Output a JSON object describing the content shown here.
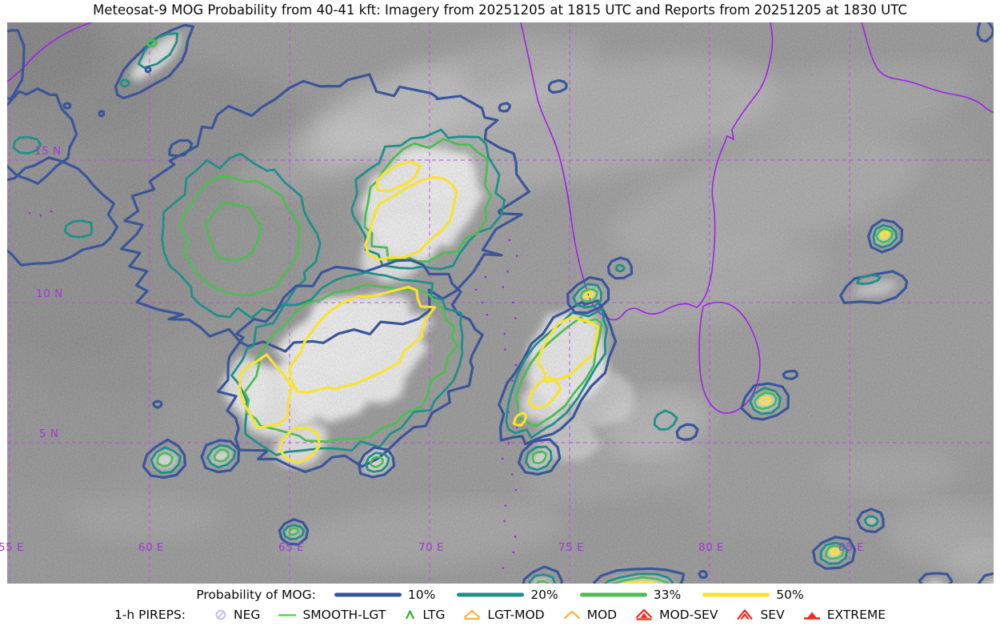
{
  "title": "Meteosat-9 MOG Probability from 40-41 kft: Imagery from 20251205 at 1815 UTC and Reports from 20251205 at 1830 UTC",
  "map": {
    "lat_labels": [
      {
        "text": "15 N"
      },
      {
        "text": "10 N"
      },
      {
        "text": "5 N"
      }
    ],
    "lon_labels": [
      {
        "text": "55 E"
      },
      {
        "text": "60 E"
      },
      {
        "text": "65 E"
      },
      {
        "text": "70 E"
      },
      {
        "text": "75 E"
      },
      {
        "text": "80 E"
      },
      {
        "text": "85 E"
      }
    ],
    "colors": {
      "gridline": "#bb55dd",
      "coastline": "#a020e8",
      "grid_label": "#a235d8",
      "background_gray": "#8d8c8c"
    }
  },
  "contour_levels": [
    {
      "label": "10%",
      "color": "#3a569a"
    },
    {
      "label": "20%",
      "color": "#1f9089"
    },
    {
      "label": "33%",
      "color": "#4dbd54"
    },
    {
      "label": "50%",
      "color": "#f8e331"
    }
  ],
  "legend": {
    "mog_label": "Probability of MOG:",
    "pireps_label": "1-h PIREPS:",
    "pireps_items": [
      {
        "label": "NEG",
        "symbol": "neg-icon",
        "color": "#c9c0f2"
      },
      {
        "label": "SMOOTH-LGT",
        "symbol": "smooth-lgt-icon",
        "color": "#33e033"
      },
      {
        "label": "LTG",
        "symbol": "ltg-icon",
        "color": "#2cb430"
      },
      {
        "label": "LGT-MOD",
        "symbol": "lgt-mod-icon",
        "color": "#ffb342"
      },
      {
        "label": "MOD",
        "symbol": "mod-icon",
        "color": "#ffb342"
      },
      {
        "label": "MOD-SEV",
        "symbol": "mod-sev-icon",
        "color": "#f5281c"
      },
      {
        "label": "SEV",
        "symbol": "sev-icon",
        "color": "#f5281c"
      },
      {
        "label": "EXTREME",
        "symbol": "extreme-icon",
        "color": "#f5281c"
      }
    ]
  }
}
